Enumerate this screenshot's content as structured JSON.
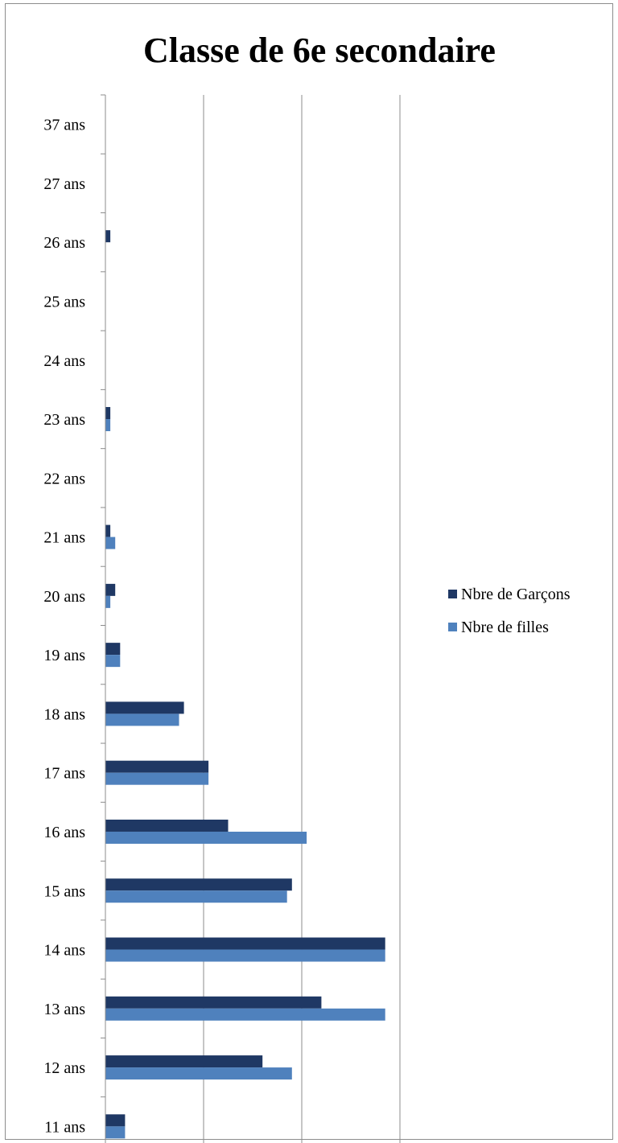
{
  "chart_data": {
    "type": "bar",
    "orientation": "horizontal",
    "title": "Classe de 6e secondaire",
    "xlabel": "",
    "ylabel": "",
    "categories": [
      "11 ans",
      "12 ans",
      "13 ans",
      "14 ans",
      "15 ans",
      "16 ans",
      "17 ans",
      "18 ans",
      "19 ans",
      "20 ans",
      "21 ans",
      "22 ans",
      "23 ans",
      "24 ans",
      "25 ans",
      "26 ans",
      "27 ans",
      "37 ans"
    ],
    "series": [
      {
        "name": "Nbre de Garçons",
        "color": "#1f3864",
        "values": [
          4,
          32,
          44,
          57,
          38,
          25,
          21,
          16,
          3,
          2,
          1,
          0,
          1,
          0,
          0,
          1,
          0,
          0
        ]
      },
      {
        "name": "Nbre de filles",
        "color": "#4f81bd",
        "values": [
          4,
          38,
          57,
          57,
          37,
          41,
          21,
          15,
          3,
          1,
          2,
          0,
          1,
          0,
          0,
          0,
          0,
          0
        ]
      }
    ],
    "xlim": [
      0,
      60
    ],
    "xticks": [
      0,
      20,
      40,
      60
    ],
    "grid": true,
    "legend_position": "right"
  }
}
